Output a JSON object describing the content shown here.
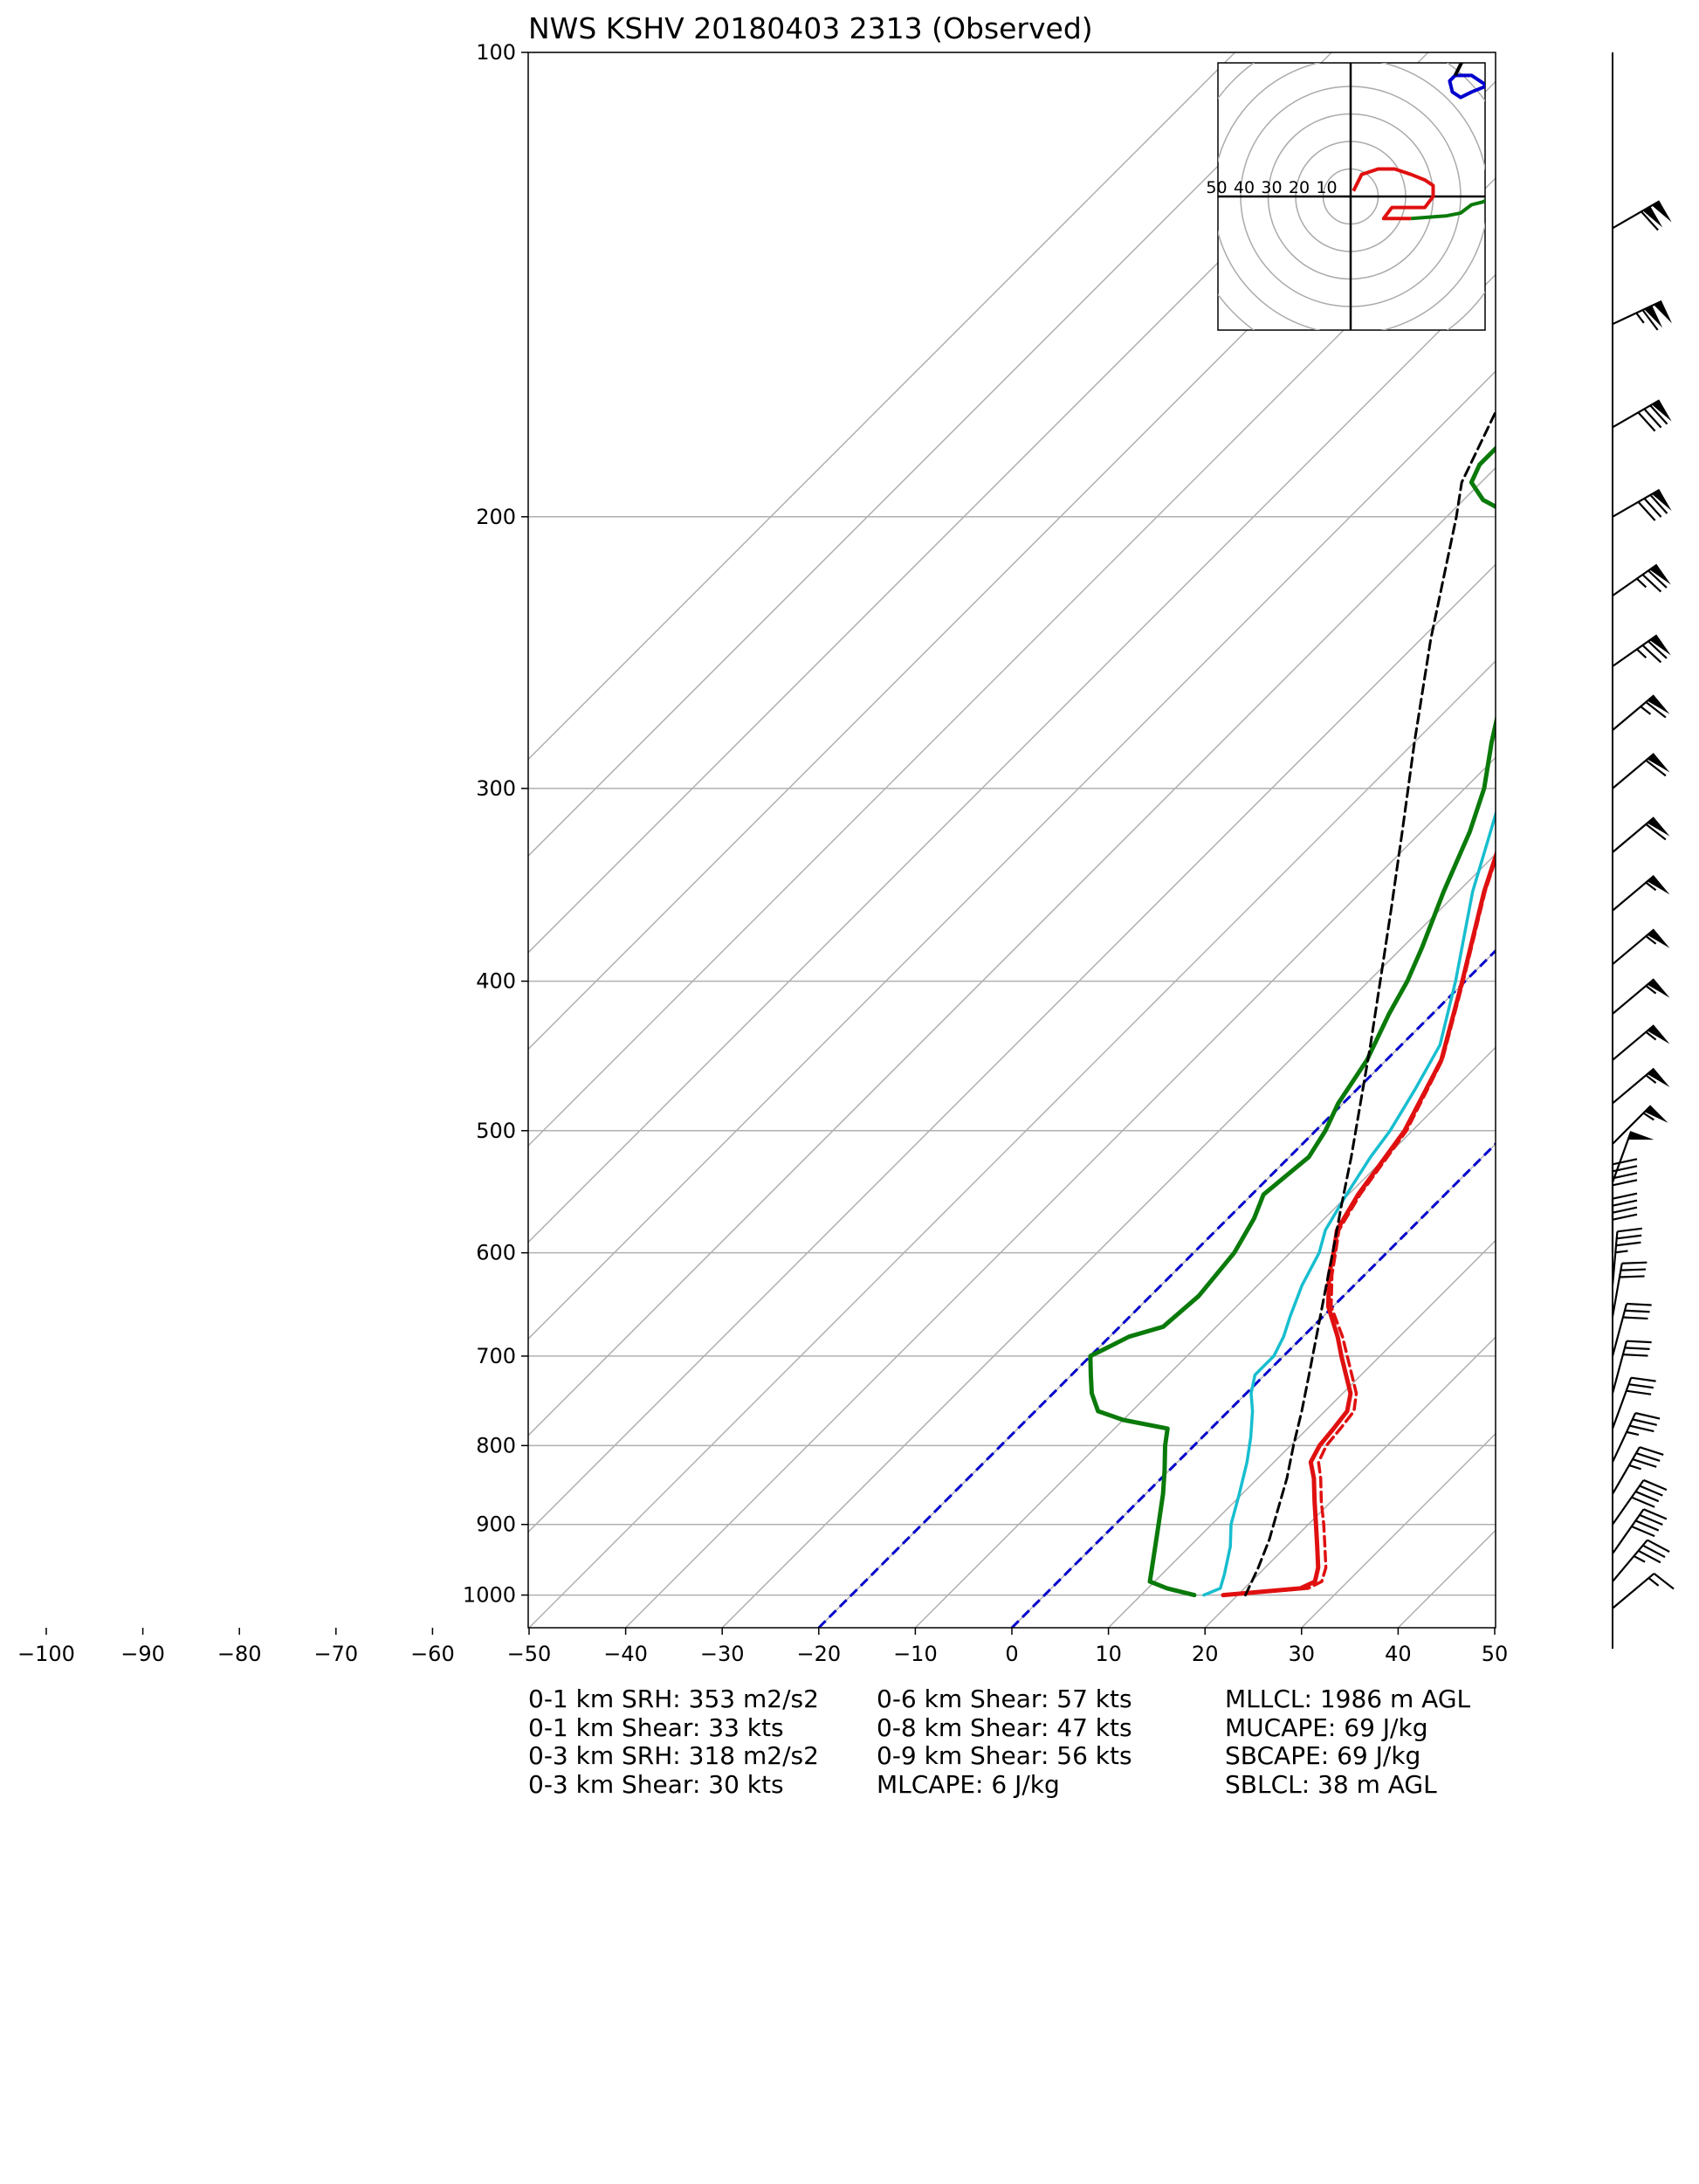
{
  "chart_data": {
    "type": "skew-t",
    "title": "NWS KSHV 20180403 2313   (Observed)",
    "x_ticks": [
      -100,
      -90,
      -80,
      -70,
      -60,
      -50,
      -40,
      -30,
      -20,
      -10,
      0,
      10,
      20,
      30,
      40,
      50
    ],
    "x_tick_labels": [
      "−100",
      "−90",
      "−80",
      "−70",
      "−60",
      "−50",
      "−40",
      "−30",
      "−20",
      "−10",
      "0",
      "10",
      "20",
      "30",
      "40",
      "50"
    ],
    "p_ticks": [
      100,
      200,
      300,
      400,
      500,
      600,
      700,
      800,
      900,
      1000
    ],
    "xlim": [
      -50,
      50
    ],
    "plim": [
      1050,
      100
    ],
    "grid": true,
    "colors": {
      "temperature": "#e01010",
      "virtual_temperature": "#e01010",
      "dewpoint": "#0a7a0a",
      "wetbulb": "#17becf",
      "parcel": "#000000",
      "reference_isotherms": "#0000cc",
      "grid": "#b0b0b0"
    },
    "series": [
      {
        "key": "temperature",
        "style": "solid",
        "points": [
          [
            1000,
            18.5
          ],
          [
            990,
            25.8
          ],
          [
            980,
            26.6
          ],
          [
            960,
            25.5
          ],
          [
            930,
            23.2
          ],
          [
            900,
            20.8
          ],
          [
            870,
            18.3
          ],
          [
            840,
            15.8
          ],
          [
            820,
            13.8
          ],
          [
            800,
            13.0
          ],
          [
            780,
            12.7
          ],
          [
            760,
            12.3
          ],
          [
            740,
            10.8
          ],
          [
            700,
            6.0
          ],
          [
            680,
            3.6
          ],
          [
            650,
            -0.5
          ],
          [
            620,
            -3.7
          ],
          [
            600,
            -5.5
          ],
          [
            580,
            -7.5
          ],
          [
            550,
            -9.0
          ],
          [
            500,
            -10.8
          ],
          [
            450,
            -14.3
          ],
          [
            400,
            -20.3
          ],
          [
            350,
            -27.3
          ],
          [
            300,
            -34.5
          ],
          [
            250,
            -43.0
          ],
          [
            220,
            -49.8
          ],
          [
            200,
            -55.0
          ],
          [
            180,
            -59.0
          ],
          [
            170,
            -59.0
          ],
          [
            160,
            -58.0
          ],
          [
            150,
            -58.5
          ],
          [
            140,
            -63.0
          ],
          [
            130,
            -67.0
          ],
          [
            120,
            -71.5
          ],
          [
            110,
            -76.0
          ],
          [
            105,
            -79.5
          ],
          [
            100,
            -83.5
          ]
        ]
      },
      {
        "key": "virtual_temperature",
        "style": "dashed",
        "points": [
          [
            1000,
            18.8
          ],
          [
            990,
            26.6
          ],
          [
            980,
            27.3
          ],
          [
            960,
            26.3
          ],
          [
            930,
            24.0
          ],
          [
            900,
            21.6
          ],
          [
            870,
            19.0
          ],
          [
            840,
            16.5
          ],
          [
            820,
            14.6
          ],
          [
            800,
            13.7
          ],
          [
            780,
            13.4
          ],
          [
            760,
            13.0
          ],
          [
            740,
            11.4
          ],
          [
            700,
            6.6
          ],
          [
            680,
            4.1
          ],
          [
            650,
            -0.2
          ],
          [
            620,
            -3.4
          ],
          [
            600,
            -5.3
          ],
          [
            580,
            -7.3
          ],
          [
            550,
            -8.8
          ],
          [
            500,
            -10.6
          ],
          [
            450,
            -14.2
          ],
          [
            400,
            -20.2
          ],
          [
            350,
            -27.2
          ],
          [
            300,
            -34.4
          ]
        ]
      },
      {
        "key": "wetbulb",
        "style": "solid",
        "points": [
          [
            1000,
            16.5
          ],
          [
            990,
            17.5
          ],
          [
            970,
            16.5
          ],
          [
            930,
            14.2
          ],
          [
            900,
            12.0
          ],
          [
            860,
            9.7
          ],
          [
            820,
            7.2
          ],
          [
            790,
            5.0
          ],
          [
            760,
            2.5
          ],
          [
            740,
            0.5
          ],
          [
            720,
            -1.0
          ],
          [
            700,
            -1.0
          ],
          [
            680,
            -2.0
          ],
          [
            660,
            -3.4
          ],
          [
            630,
            -5.4
          ],
          [
            600,
            -7.0
          ],
          [
            580,
            -8.7
          ],
          [
            550,
            -10.2
          ],
          [
            520,
            -11.6
          ],
          [
            500,
            -12.3
          ],
          [
            470,
            -14.0
          ],
          [
            440,
            -16.0
          ],
          [
            400,
            -21.0
          ],
          [
            350,
            -28.5
          ],
          [
            300,
            -36.0
          ],
          [
            250,
            -45.0
          ],
          [
            220,
            -51.0
          ],
          [
            200,
            -56.0
          ],
          [
            180,
            -60.0
          ],
          [
            170,
            -59.5
          ],
          [
            160,
            -58.5
          ],
          [
            150,
            -59.0
          ],
          [
            140,
            -63.0
          ],
          [
            130,
            -67.0
          ],
          [
            120,
            -71.5
          ],
          [
            110,
            -76.0
          ],
          [
            105,
            -80.0
          ],
          [
            100,
            -84.0
          ]
        ]
      },
      {
        "key": "dewpoint",
        "style": "solid",
        "points": [
          [
            1000,
            15.5
          ],
          [
            990,
            12.0
          ],
          [
            980,
            9.5
          ],
          [
            960,
            8.3
          ],
          [
            900,
            4.5
          ],
          [
            860,
            1.8
          ],
          [
            830,
            -0.5
          ],
          [
            800,
            -3.0
          ],
          [
            780,
            -4.5
          ],
          [
            770,
            -10.0
          ],
          [
            760,
            -13.5
          ],
          [
            740,
            -16.0
          ],
          [
            720,
            -18.0
          ],
          [
            700,
            -20.0
          ],
          [
            690,
            -19.0
          ],
          [
            680,
            -18.0
          ],
          [
            670,
            -15.5
          ],
          [
            640,
            -15.0
          ],
          [
            600,
            -15.8
          ],
          [
            570,
            -17.3
          ],
          [
            550,
            -18.8
          ],
          [
            520,
            -18.0
          ],
          [
            500,
            -19.0
          ],
          [
            480,
            -20.5
          ],
          [
            450,
            -22.0
          ],
          [
            420,
            -24.5
          ],
          [
            400,
            -26.0
          ],
          [
            380,
            -28.0
          ],
          [
            350,
            -31.5
          ],
          [
            320,
            -35.0
          ],
          [
            300,
            -38.0
          ],
          [
            280,
            -42.0
          ],
          [
            260,
            -46.0
          ],
          [
            240,
            -50.0
          ],
          [
            230,
            -54.0
          ],
          [
            220,
            -57.0
          ],
          [
            210,
            -58.0
          ],
          [
            200,
            -63.0
          ],
          [
            195,
            -68.0
          ],
          [
            190,
            -71.0
          ],
          [
            185,
            -72.0
          ],
          [
            180,
            -72.0
          ],
          [
            170,
            -74.5
          ],
          [
            160,
            -77.0
          ],
          [
            150,
            -78.0
          ],
          [
            140,
            -80.0
          ],
          [
            130,
            -82.0
          ],
          [
            120,
            -84.0
          ],
          [
            110,
            -86.0
          ],
          [
            105,
            -86.0
          ],
          [
            100,
            -88.0
          ]
        ]
      },
      {
        "key": "parcel",
        "style": "dashed",
        "points": [
          [
            1000,
            20.8
          ],
          [
            960,
            19.3
          ],
          [
            920,
            17.5
          ],
          [
            880,
            15.3
          ],
          [
            840,
            13.0
          ],
          [
            800,
            10.3
          ],
          [
            760,
            7.6
          ],
          [
            720,
            4.6
          ],
          [
            680,
            1.4
          ],
          [
            640,
            -2.0
          ],
          [
            600,
            -5.6
          ],
          [
            560,
            -9.5
          ],
          [
            520,
            -13.6
          ],
          [
            480,
            -18.2
          ],
          [
            440,
            -23.2
          ],
          [
            400,
            -28.8
          ],
          [
            360,
            -35.0
          ],
          [
            320,
            -42.0
          ],
          [
            280,
            -50.0
          ],
          [
            240,
            -59.0
          ],
          [
            200,
            -69.0
          ],
          [
            190,
            -72.0
          ],
          [
            170,
            -76.0
          ],
          [
            150,
            -80.5
          ],
          [
            130,
            -85.5
          ],
          [
            110,
            -91.0
          ],
          [
            100,
            -94.0
          ]
        ]
      }
    ],
    "reference_isotherms": [
      -20,
      0
    ],
    "hodograph": {
      "ring_labels": [
        "50",
        "40",
        "30",
        "20",
        "10"
      ],
      "ring_values": [
        10,
        20,
        30,
        40,
        50,
        60,
        70,
        80
      ],
      "segments": [
        {
          "color": "#e01010",
          "points": [
            [
              22,
              -8
            ],
            [
              12,
              -8
            ],
            [
              15,
              -4
            ],
            [
              27,
              -4
            ],
            [
              30,
              0
            ],
            [
              30,
              4
            ],
            [
              27,
              6
            ],
            [
              22,
              8
            ],
            [
              16,
              10
            ],
            [
              10,
              10
            ],
            [
              4,
              8
            ],
            [
              1,
              2
            ]
          ]
        },
        {
          "color": "#0a7a0a",
          "points": [
            [
              22,
              -8
            ],
            [
              35,
              -7
            ],
            [
              40,
              -6
            ],
            [
              44,
              -3
            ],
            [
              48,
              -2
            ],
            [
              52,
              0
            ],
            [
              54,
              4
            ],
            [
              60,
              10
            ],
            [
              70,
              20
            ]
          ]
        },
        {
          "color": "#0000cc",
          "points": [
            [
              52,
              38
            ],
            [
              49,
              40
            ],
            [
              44,
              38
            ],
            [
              40,
              36
            ],
            [
              37,
              38
            ],
            [
              36,
              42
            ],
            [
              38,
              44
            ],
            [
              44,
              44
            ],
            [
              50,
              40
            ]
          ]
        },
        {
          "color": "#000000",
          "points": [
            [
              38,
              44
            ],
            [
              40,
              48
            ],
            [
              41,
              50
            ],
            [
              45,
              50
            ],
            [
              47,
              51
            ],
            [
              48,
              52
            ],
            [
              52,
              52
            ],
            [
              55,
              50
            ]
          ]
        }
      ]
    },
    "wind_barbs": [
      {
        "p": 130,
        "spd": 110,
        "dir": 240
      },
      {
        "p": 150,
        "spd": 115,
        "dir": 245
      },
      {
        "p": 175,
        "spd": 80,
        "dir": 240
      },
      {
        "p": 200,
        "spd": 80,
        "dir": 240
      },
      {
        "p": 225,
        "spd": 75,
        "dir": 235
      },
      {
        "p": 250,
        "spd": 75,
        "dir": 235
      },
      {
        "p": 275,
        "spd": 65,
        "dir": 230
      },
      {
        "p": 300,
        "spd": 60,
        "dir": 230
      },
      {
        "p": 330,
        "spd": 60,
        "dir": 230
      },
      {
        "p": 360,
        "spd": 55,
        "dir": 230
      },
      {
        "p": 390,
        "spd": 55,
        "dir": 230
      },
      {
        "p": 420,
        "spd": 55,
        "dir": 230
      },
      {
        "p": 450,
        "spd": 55,
        "dir": 230
      },
      {
        "p": 480,
        "spd": 55,
        "dir": 230
      },
      {
        "p": 510,
        "spd": 55,
        "dir": 225
      },
      {
        "p": 540,
        "spd": 50,
        "dir": 200
      },
      {
        "p": 570,
        "spd": 40,
        "dir": 180
      },
      {
        "p": 600,
        "spd": 40,
        "dir": 180
      },
      {
        "p": 630,
        "spd": 35,
        "dir": 185
      },
      {
        "p": 660,
        "spd": 30,
        "dir": 190
      },
      {
        "p": 700,
        "spd": 30,
        "dir": 195
      },
      {
        "p": 740,
        "spd": 30,
        "dir": 195
      },
      {
        "p": 780,
        "spd": 30,
        "dir": 200
      },
      {
        "p": 820,
        "spd": 35,
        "dir": 205
      },
      {
        "p": 860,
        "spd": 35,
        "dir": 210
      },
      {
        "p": 900,
        "spd": 40,
        "dir": 215
      },
      {
        "p": 940,
        "spd": 40,
        "dir": 215
      },
      {
        "p": 980,
        "spd": 35,
        "dir": 220
      },
      {
        "p": 1020,
        "spd": 15,
        "dir": 230
      }
    ]
  },
  "stats": {
    "col1": [
      "0-1 km SRH: 353 m2/s2",
      "0-1 km Shear: 33 kts",
      "0-3 km SRH: 318 m2/s2",
      "0-3 km Shear: 30 kts"
    ],
    "col2": [
      "0-6 km Shear: 57 kts",
      "0-8 km Shear: 47 kts",
      "0-9 km Shear: 56 kts",
      "MLCAPE: 6 J/kg"
    ],
    "col3": [
      "MLLCL: 1986 m AGL",
      "MUCAPE: 69 J/kg",
      "SBCAPE: 69 J/kg",
      "SBLCL: 38 m AGL"
    ]
  }
}
